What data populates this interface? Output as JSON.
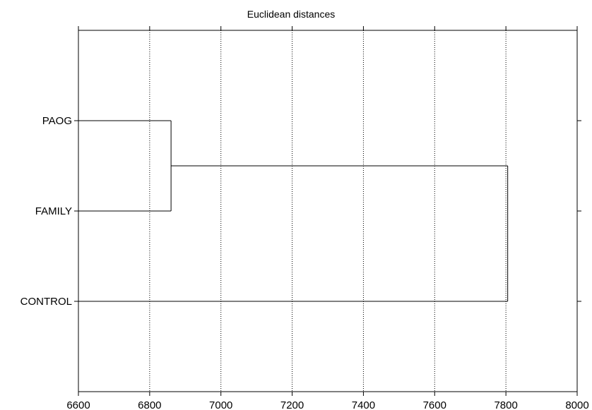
{
  "chart_data": {
    "type": "dendrogram",
    "title": "Euclidean distances",
    "xlabel": "",
    "ylabel": "",
    "xlim": [
      6600,
      8000
    ],
    "x_ticks": [
      6600,
      6800,
      7000,
      7200,
      7400,
      7600,
      7800,
      8000
    ],
    "grid": "vertical-dotted",
    "leaves": [
      "PAOG",
      "FAMILY",
      "CONTROL"
    ],
    "merges": [
      {
        "children": [
          "PAOG",
          "FAMILY"
        ],
        "distance": 6860
      },
      {
        "children": [
          "PAOG+FAMILY",
          "CONTROL"
        ],
        "distance": 7805
      }
    ]
  }
}
